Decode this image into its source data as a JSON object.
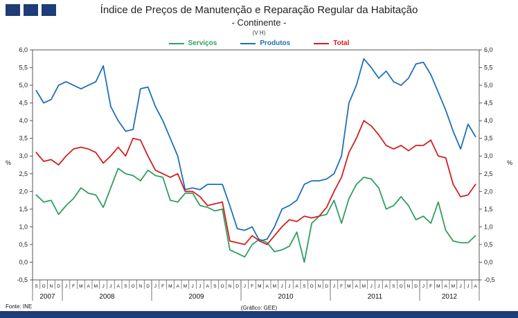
{
  "header": {
    "title": "Índice de Preços de Manutenção e Reparação Regular da Habitação",
    "subtitle": "- Continente -",
    "unit_note": "(V H)"
  },
  "footer": {
    "fonte": "Fonte: INE",
    "grafico": "(Gráfico: GEE)"
  },
  "colors": {
    "brand_navy": "#1e3c78",
    "axis": "#555555",
    "servicos_green": "#2f9e5f",
    "produtos_blue": "#1e6fba",
    "total_red": "#d11f1f"
  },
  "chart_data": {
    "type": "line",
    "title": "Índice de Preços de Manutenção e Reparação Regular da Habitação - Continente - (V H)",
    "ylabel": "%",
    "ylim": [
      -0.5,
      6.0
    ],
    "ytick_step": 0.5,
    "ytick_labels": [
      "6,0",
      "5,5",
      "5,0",
      "4,5",
      "4,0",
      "3,5",
      "3,0",
      "2,5",
      "2,0",
      "1,5",
      "1,0",
      "0,5",
      "0,0",
      "-0,5"
    ],
    "grid": false,
    "legend_position": "top",
    "x_months": [
      "S",
      "O",
      "N",
      "D",
      "J",
      "F",
      "M",
      "A",
      "M",
      "J",
      "J",
      "A",
      "S",
      "O",
      "N",
      "D",
      "J",
      "F",
      "M",
      "A",
      "M",
      "J",
      "J",
      "A",
      "S",
      "O",
      "N",
      "D",
      "J",
      "F",
      "M",
      "A",
      "M",
      "J",
      "J",
      "A",
      "S",
      "O",
      "N",
      "D",
      "J",
      "F",
      "M",
      "A",
      "M",
      "J",
      "J",
      "A",
      "S",
      "O",
      "N",
      "D",
      "J",
      "F",
      "M",
      "A",
      "M",
      "J",
      "J",
      "A"
    ],
    "years": [
      {
        "label": "2007",
        "start": 0,
        "end": 3
      },
      {
        "label": "2008",
        "start": 4,
        "end": 15
      },
      {
        "label": "2009",
        "start": 16,
        "end": 27
      },
      {
        "label": "2010",
        "start": 28,
        "end": 39
      },
      {
        "label": "2011",
        "start": 40,
        "end": 51
      },
      {
        "label": "2012",
        "start": 52,
        "end": 59
      }
    ],
    "series": [
      {
        "name": "Serviços",
        "color": "#2f9e5f",
        "values": [
          1.9,
          1.7,
          1.75,
          1.35,
          1.6,
          1.8,
          2.1,
          1.95,
          1.9,
          1.55,
          2.1,
          2.65,
          2.5,
          2.45,
          2.3,
          2.6,
          2.45,
          2.4,
          1.75,
          1.7,
          1.95,
          1.95,
          1.6,
          1.55,
          1.45,
          1.5,
          0.35,
          0.25,
          0.15,
          0.5,
          0.65,
          0.55,
          0.3,
          0.35,
          0.45,
          0.85,
          0.0,
          1.1,
          1.3,
          1.35,
          1.75,
          1.1,
          1.8,
          2.2,
          2.4,
          2.35,
          2.1,
          1.5,
          1.6,
          1.85,
          1.6,
          1.2,
          1.3,
          1.1,
          1.7,
          0.9,
          0.6,
          0.55,
          0.55,
          0.75
        ]
      },
      {
        "name": "Produtos",
        "color": "#1e6fba",
        "values": [
          4.85,
          4.5,
          4.6,
          5.0,
          5.1,
          5.0,
          4.9,
          5.0,
          5.1,
          5.55,
          4.4,
          4.0,
          3.7,
          3.75,
          4.9,
          4.95,
          4.4,
          4.0,
          3.5,
          3.0,
          2.05,
          2.1,
          2.05,
          2.2,
          2.2,
          2.2,
          1.6,
          0.95,
          0.9,
          1.0,
          0.6,
          0.65,
          1.0,
          1.5,
          1.6,
          1.75,
          2.2,
          2.3,
          2.3,
          2.35,
          2.5,
          3.0,
          4.5,
          5.0,
          5.75,
          5.5,
          5.2,
          5.4,
          5.1,
          5.0,
          5.2,
          5.6,
          5.65,
          5.3,
          4.8,
          4.3,
          3.7,
          3.2,
          3.9,
          3.55
        ]
      },
      {
        "name": "Total",
        "color": "#d11f1f",
        "values": [
          3.1,
          2.85,
          2.9,
          2.75,
          3.0,
          3.2,
          3.25,
          3.2,
          3.1,
          2.8,
          3.0,
          3.25,
          3.0,
          3.5,
          3.45,
          3.0,
          2.6,
          2.5,
          2.4,
          2.5,
          2.0,
          2.0,
          1.85,
          1.6,
          1.65,
          1.7,
          0.6,
          0.55,
          0.5,
          0.75,
          0.6,
          0.5,
          0.75,
          1.0,
          1.2,
          1.15,
          1.3,
          1.25,
          1.3,
          1.55,
          2.0,
          2.4,
          3.1,
          3.5,
          4.0,
          3.85,
          3.6,
          3.3,
          3.2,
          3.3,
          3.15,
          3.3,
          3.3,
          3.45,
          3.0,
          2.95,
          2.2,
          1.85,
          1.9,
          2.2
        ]
      }
    ]
  }
}
